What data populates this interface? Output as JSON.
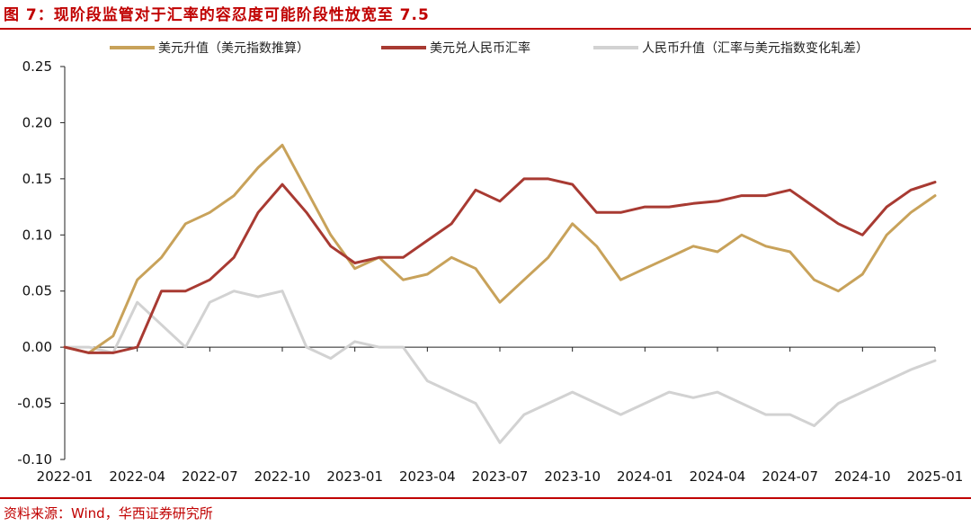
{
  "figure": {
    "title": "图 7：现阶段监管对于汇率的容忍度可能阶段性放宽至 7.5",
    "source": "资料来源：Wind，华西证券研究所"
  },
  "colors": {
    "accent": "#c00000",
    "usd_index": "#c8a25a",
    "usd_cny": "#a83a32",
    "cny": "#d2d2d2"
  },
  "chart_data": {
    "type": "line",
    "title": "",
    "xlabel": "",
    "ylabel": "",
    "ylim": [
      -0.1,
      0.25
    ],
    "yticks": [
      "0.25",
      "0.20",
      "0.15",
      "0.10",
      "0.05",
      "0.00",
      "-0.05",
      "-0.10"
    ],
    "ytick_values": [
      0.25,
      0.2,
      0.15,
      0.1,
      0.05,
      0.0,
      -0.05,
      -0.1
    ],
    "xticks": [
      "2022-01",
      "2022-04",
      "2022-07",
      "2022-10",
      "2023-01",
      "2023-04",
      "2023-07",
      "2023-10",
      "2024-01",
      "2024-04",
      "2024-07",
      "2024-10",
      "2025-01"
    ],
    "x": [
      "2022-01",
      "2022-02",
      "2022-03",
      "2022-04",
      "2022-05",
      "2022-06",
      "2022-07",
      "2022-08",
      "2022-09",
      "2022-10",
      "2022-11",
      "2022-12",
      "2023-01",
      "2023-02",
      "2023-03",
      "2023-04",
      "2023-05",
      "2023-06",
      "2023-07",
      "2023-08",
      "2023-09",
      "2023-10",
      "2023-11",
      "2023-12",
      "2024-01",
      "2024-02",
      "2024-03",
      "2024-04",
      "2024-05",
      "2024-06",
      "2024-07",
      "2024-08",
      "2024-09",
      "2024-10",
      "2024-11",
      "2024-12",
      "2025-01"
    ],
    "legend_position": "top",
    "grid": false,
    "series": [
      {
        "name": "美元升值（美元指数推算）",
        "color": "#c8a25a",
        "values": [
          0.0,
          -0.005,
          0.01,
          0.06,
          0.08,
          0.11,
          0.12,
          0.135,
          0.16,
          0.18,
          0.14,
          0.1,
          0.07,
          0.08,
          0.06,
          0.065,
          0.08,
          0.07,
          0.04,
          0.06,
          0.08,
          0.11,
          0.09,
          0.06,
          0.07,
          0.08,
          0.09,
          0.085,
          0.1,
          0.09,
          0.085,
          0.06,
          0.05,
          0.065,
          0.1,
          0.12,
          0.135
        ]
      },
      {
        "name": "美元兑人民币汇率",
        "color": "#a83a32",
        "values": [
          0.0,
          -0.005,
          -0.005,
          0.0,
          0.05,
          0.05,
          0.06,
          0.08,
          0.12,
          0.145,
          0.12,
          0.09,
          0.075,
          0.08,
          0.08,
          0.095,
          0.11,
          0.14,
          0.13,
          0.15,
          0.15,
          0.145,
          0.12,
          0.12,
          0.125,
          0.125,
          0.128,
          0.13,
          0.135,
          0.135,
          0.14,
          0.125,
          0.11,
          0.1,
          0.125,
          0.14,
          0.147
        ]
      },
      {
        "name": "人民币升值（汇率与美元指数变化轧差）",
        "color": "#d2d2d2",
        "values": [
          0.0,
          0.0,
          -0.005,
          0.04,
          0.02,
          0.0,
          0.04,
          0.05,
          0.045,
          0.05,
          0.0,
          -0.01,
          0.005,
          0.0,
          0.0,
          -0.03,
          -0.04,
          -0.05,
          -0.085,
          -0.06,
          -0.05,
          -0.04,
          -0.05,
          -0.06,
          -0.05,
          -0.04,
          -0.045,
          -0.04,
          -0.05,
          -0.06,
          -0.06,
          -0.07,
          -0.05,
          -0.04,
          -0.03,
          -0.02,
          -0.012
        ]
      }
    ]
  }
}
